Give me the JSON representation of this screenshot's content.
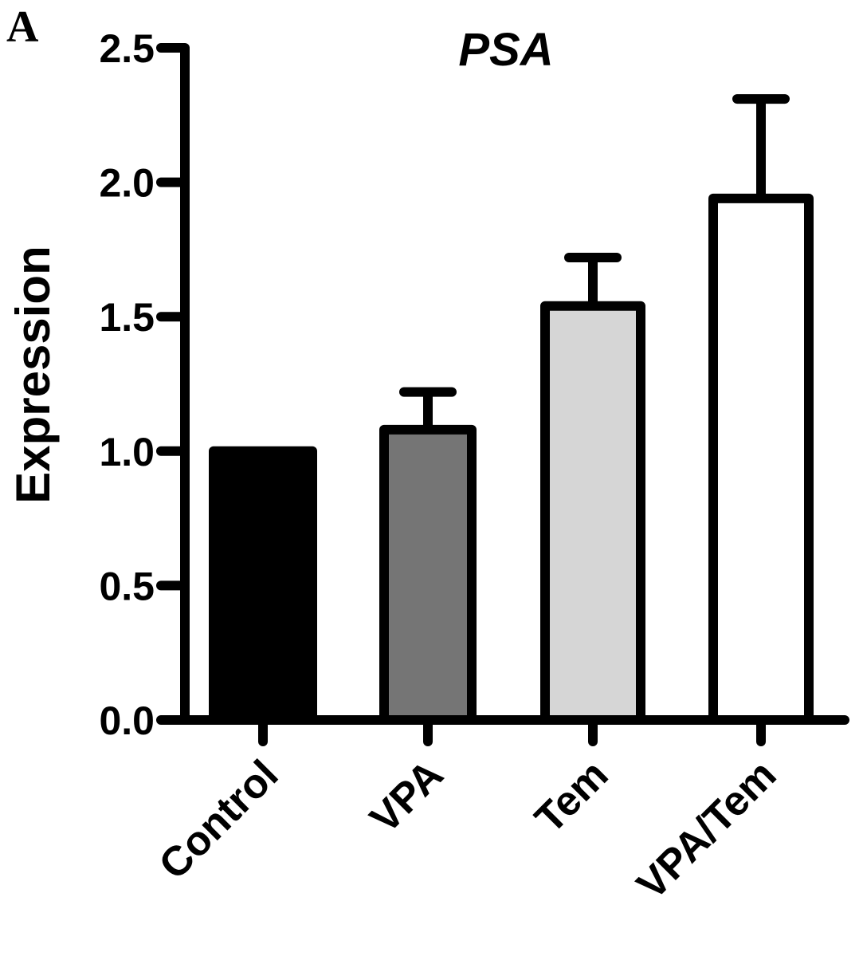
{
  "panel_label": "A",
  "chart_data": {
    "type": "bar",
    "title": "PSA",
    "xlabel": "",
    "ylabel": "Expression",
    "ylim": [
      0,
      2.5
    ],
    "yticks": [
      "0.0",
      "0.5",
      "1.0",
      "1.5",
      "2.0",
      "2.5"
    ],
    "ytick_values": [
      0,
      0.5,
      1.0,
      1.5,
      2.0,
      2.5
    ],
    "categories": [
      "Control",
      "VPA",
      "Tem",
      "VPA/Tem"
    ],
    "values": [
      1.0,
      1.08,
      1.54,
      1.94
    ],
    "error_upper": [
      0,
      0.14,
      0.18,
      0.37
    ],
    "bar_colors": [
      "#000000",
      "#757575",
      "#d6d6d6",
      "#ffffff"
    ],
    "grid": false
  }
}
